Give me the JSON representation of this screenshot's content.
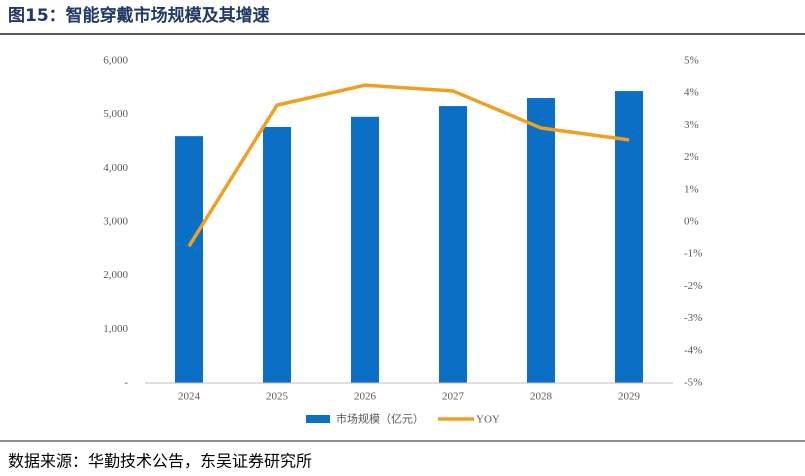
{
  "chart_data": {
    "type": "bar-line",
    "title": "图15：智能穿戴市场规模及其增速",
    "source": "数据来源：华勤技术公告，东吴证券研究所",
    "categories": [
      "2024",
      "2025",
      "2026",
      "2027",
      "2028",
      "2029"
    ],
    "series": [
      {
        "name": "市场规模（亿元）",
        "type": "bar",
        "color": "#0b6fc6",
        "values": [
          4600,
          4770,
          4960,
          5160,
          5310,
          5440
        ]
      },
      {
        "name": "YOY",
        "type": "line",
        "axis": "y2",
        "color": "#f0a01e",
        "values": [
          -0.75,
          3.63,
          4.25,
          4.07,
          2.92,
          2.55
        ]
      }
    ],
    "ylim": [
      0,
      6000
    ],
    "yticks": [
      {
        "value": 0,
        "label": "-"
      },
      {
        "value": 1000,
        "label": "1,000"
      },
      {
        "value": 2000,
        "label": "2,000"
      },
      {
        "value": 3000,
        "label": "3,000"
      },
      {
        "value": 4000,
        "label": "4,000"
      },
      {
        "value": 5000,
        "label": "5,000"
      },
      {
        "value": 6000,
        "label": "6,000"
      }
    ],
    "y2lim": [
      -5,
      5
    ],
    "y2ticks": [
      {
        "value": -5,
        "label": "-5%"
      },
      {
        "value": -4,
        "label": "-4%"
      },
      {
        "value": -3,
        "label": "-3%"
      },
      {
        "value": -2,
        "label": "-2%"
      },
      {
        "value": -1,
        "label": "-1%"
      },
      {
        "value": 0,
        "label": "0%"
      },
      {
        "value": 1,
        "label": "1%"
      },
      {
        "value": 2,
        "label": "2%"
      },
      {
        "value": 3,
        "label": "3%"
      },
      {
        "value": 4,
        "label": "4%"
      },
      {
        "value": 5,
        "label": "5%"
      }
    ],
    "grid": false
  }
}
